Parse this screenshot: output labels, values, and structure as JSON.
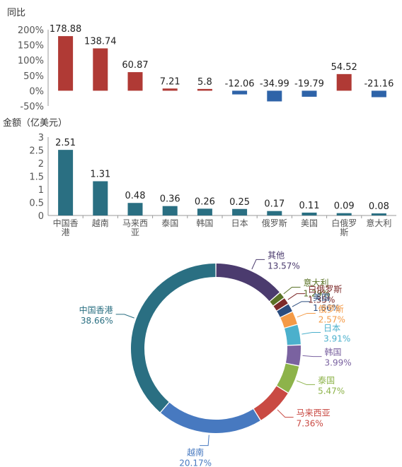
{
  "chart_data": [
    {
      "type": "bar",
      "title": "同比",
      "categories": [
        "中国香港",
        "越南",
        "马来西亚",
        "泰国",
        "韩国",
        "日本",
        "俄罗斯",
        "美国",
        "白俄罗斯",
        "意大利"
      ],
      "values": [
        178.88,
        138.74,
        60.87,
        7.21,
        5.8,
        -12.06,
        -34.99,
        -19.79,
        54.52,
        -21.16
      ],
      "value_labels": [
        "178.88",
        "138.74",
        "60.87",
        "7.21",
        "5.8",
        "-12.06",
        "-34.99",
        "-19.79",
        "54.52",
        "-21.16"
      ],
      "ylim": [
        -50,
        200
      ],
      "yticks": [
        "200%",
        "150%",
        "100%",
        "50%",
        "0%",
        "-50%"
      ],
      "colors": {
        "positive": "#b03a35",
        "negative": "#2e63a8"
      },
      "grid": false
    },
    {
      "type": "bar",
      "title": "金额（亿美元）",
      "categories": [
        "中国香港",
        "越南",
        "马来西亚",
        "泰国",
        "韩国",
        "日本",
        "俄罗斯",
        "美国",
        "白俄罗斯",
        "意大利"
      ],
      "values": [
        2.51,
        1.31,
        0.48,
        0.36,
        0.26,
        0.25,
        0.17,
        0.11,
        0.09,
        0.08
      ],
      "value_labels": [
        "2.51",
        "1.31",
        "0.48",
        "0.36",
        "0.26",
        "0.25",
        "0.17",
        "0.11",
        "0.09",
        "0.08"
      ],
      "ylim": [
        0,
        3
      ],
      "yticks": [
        "3",
        "2.5",
        "2",
        "1.5",
        "1",
        "0.5",
        "0"
      ],
      "colors": {
        "bar": "#2a6f82"
      },
      "grid": false
    },
    {
      "type": "pie",
      "variant": "donut",
      "slices": [
        {
          "label": "其他",
          "value": 13.57,
          "value_label": "13.57%",
          "color": "#4b3b6e"
        },
        {
          "label": "意大利",
          "value": 1.29,
          "value_label": "1.29%",
          "color": "#5a7226"
        },
        {
          "label": "白俄罗斯",
          "value": 1.35,
          "value_label": "1.35%",
          "color": "#7d2a2a"
        },
        {
          "label": "美国",
          "value": 1.66,
          "value_label": "1.66%",
          "color": "#2b4c7e"
        },
        {
          "label": "俄罗斯",
          "value": 2.57,
          "value_label": "2.57%",
          "color": "#f49a46"
        },
        {
          "label": "日本",
          "value": 3.91,
          "value_label": "3.91%",
          "color": "#4bb0cc"
        },
        {
          "label": "韩国",
          "value": 3.99,
          "value_label": "3.99%",
          "color": "#7a62a0"
        },
        {
          "label": "泰国",
          "value": 5.47,
          "value_label": "5.47%",
          "color": "#8db34a"
        },
        {
          "label": "马来西亚",
          "value": 7.36,
          "value_label": "7.36%",
          "color": "#c94a43"
        },
        {
          "label": "越南",
          "value": 20.17,
          "value_label": "20.17%",
          "color": "#4779c0"
        },
        {
          "label": "中国香港",
          "value": 38.66,
          "value_label": "38.66%",
          "color": "#2a6f82"
        }
      ]
    }
  ]
}
